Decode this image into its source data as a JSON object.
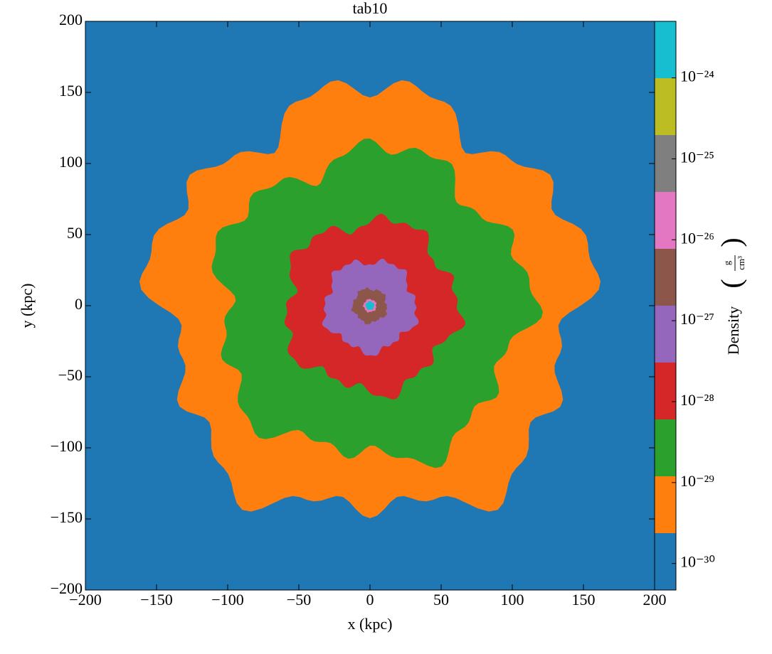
{
  "chart_data": {
    "type": "density-slice",
    "title": "tab10",
    "x_label": "x  (kpc)",
    "y_label": "y  (kpc)",
    "xlim": [
      -200,
      200
    ],
    "ylim": [
      -200,
      200
    ],
    "xticks": [
      {
        "value": -200,
        "label": "−200"
      },
      {
        "value": -150,
        "label": "−150"
      },
      {
        "value": -100,
        "label": "−100"
      },
      {
        "value": -50,
        "label": "−50"
      },
      0,
      50,
      100,
      150,
      200
    ],
    "yticks": [
      {
        "value": -200,
        "label": "−200"
      },
      {
        "value": -150,
        "label": "−150"
      },
      {
        "value": -100,
        "label": "−100"
      },
      {
        "value": -50,
        "label": "−50"
      },
      0,
      50,
      100,
      150,
      200
    ],
    "background_color": "#1f77b4",
    "regions": [
      {
        "color": "#ff7f0e",
        "radius": 148
      },
      {
        "color": "#2ca02c",
        "radius": 108
      },
      {
        "color": "#d62728",
        "radius": 60
      },
      {
        "color": "#9467bd",
        "radius": 32
      },
      {
        "color": "#8c564b",
        "radius": 12
      },
      {
        "color": "#e377c2",
        "radius": 4.5
      },
      {
        "color": "#17becf",
        "radius": 3
      }
    ],
    "colorbar": {
      "label": "Density",
      "unit_numerator": "g",
      "unit_denominator": "cm³",
      "log": true,
      "lim": [
        4.7e-31,
        5e-24
      ],
      "colors": [
        "#1f77b4",
        "#ff7f0e",
        "#2ca02c",
        "#d62728",
        "#9467bd",
        "#8c564b",
        "#e377c2",
        "#7f7f7f",
        "#bcbd22",
        "#17becf"
      ],
      "ticks": [
        {
          "value": 1e-30,
          "label": "10⁻³⁰"
        },
        {
          "value": 1e-29,
          "label": "10⁻²⁹"
        },
        {
          "value": 1e-28,
          "label": "10⁻²⁸"
        },
        {
          "value": 1e-27,
          "label": "10⁻²⁷"
        },
        {
          "value": 1e-26,
          "label": "10⁻²⁶"
        },
        {
          "value": 1e-25,
          "label": "10⁻²⁵"
        },
        {
          "value": 1e-24,
          "label": "10⁻²⁴"
        }
      ]
    }
  }
}
